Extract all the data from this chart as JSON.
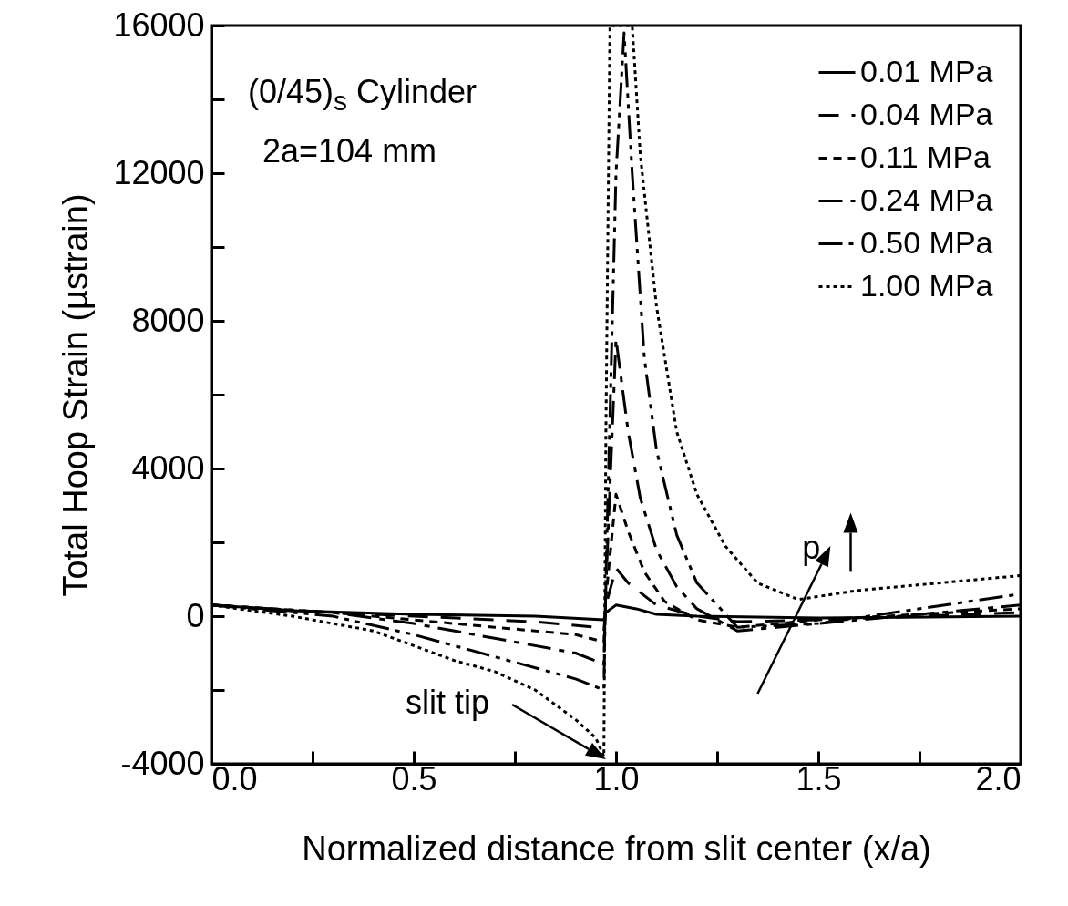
{
  "chart_data": {
    "type": "line",
    "xlabel": "Normalized distance from slit center (x/a)",
    "ylabel": "Total Hoop Strain (µstrain)",
    "xlim": [
      0,
      2
    ],
    "ylim": [
      -4000,
      16000
    ],
    "xticks": [
      {
        "value": 0,
        "label": "0.0"
      },
      {
        "value": 0.25,
        "label": null
      },
      {
        "value": 0.5,
        "label": "0.5"
      },
      {
        "value": 0.75,
        "label": null
      },
      {
        "value": 1,
        "label": "1.0"
      },
      {
        "value": 1.25,
        "label": null
      },
      {
        "value": 1.5,
        "label": "1.5"
      },
      {
        "value": 1.75,
        "label": null
      },
      {
        "value": 2,
        "label": "2.0"
      }
    ],
    "yticks": [
      -4000,
      {
        "value": -2000,
        "label": null
      },
      0,
      {
        "value": 2000,
        "label": null
      },
      4000,
      {
        "value": 6000,
        "label": null
      },
      8000,
      {
        "value": 10000,
        "label": null
      },
      12000,
      {
        "value": 14000,
        "label": null
      },
      16000
    ],
    "grid": false,
    "legend": "top right",
    "annotations": [
      "(0/45)$_{s}$ Cylinder",
      "2a=104 mm",
      "slit tip",
      "p"
    ],
    "series": [
      {
        "name": "0.01 MPa",
        "color": "#000000",
        "line_style": "solid",
        "x": [
          0,
          0.2,
          0.5,
          0.8,
          0.97,
          0.975,
          1.0,
          1.05,
          1.1,
          1.2,
          1.5,
          2.0
        ],
        "values": [
          300,
          150,
          50,
          0,
          -100,
          100,
          300,
          200,
          50,
          0,
          -50,
          0
        ]
      },
      {
        "name": "0.04 MPa",
        "color": "#000000",
        "line_style": "dashed",
        "x": [
          0,
          0.2,
          0.5,
          0.8,
          0.95,
          0.97,
          0.975,
          1.0,
          1.03,
          1.1,
          1.2,
          1.3,
          1.5,
          2.0
        ],
        "values": [
          300,
          150,
          0,
          -150,
          -300,
          -400,
          300,
          1300,
          900,
          300,
          0,
          -150,
          -100,
          100
        ]
      },
      {
        "name": "0.11 MPa",
        "color": "#000000",
        "line_style": "shortdash",
        "x": [
          0,
          0.3,
          0.5,
          0.7,
          0.9,
          0.97,
          0.975,
          1.0,
          1.03,
          1.07,
          1.12,
          1.2,
          1.3,
          1.5,
          2.0
        ],
        "values": [
          300,
          100,
          -100,
          -300,
          -500,
          -700,
          500,
          3300,
          2300,
          1200,
          400,
          -100,
          -300,
          -100,
          200
        ]
      },
      {
        "name": "0.24 MPa",
        "color": "#000000",
        "line_style": "dashdot",
        "x": [
          0,
          0.3,
          0.5,
          0.7,
          0.9,
          0.97,
          0.975,
          1.0,
          1.03,
          1.06,
          1.1,
          1.15,
          1.2,
          1.3,
          1.5,
          2.0
        ],
        "values": [
          300,
          100,
          -200,
          -600,
          -1000,
          -1300,
          800,
          7500,
          5000,
          3200,
          1800,
          800,
          200,
          -400,
          -200,
          300
        ]
      },
      {
        "name": "0.50 MPa",
        "color": "#000000",
        "line_style": "dashdotdot",
        "x": [
          0,
          0.3,
          0.5,
          0.7,
          0.9,
          0.97,
          0.975,
          1.0,
          1.02,
          1.04,
          1.07,
          1.1,
          1.15,
          1.2,
          1.3,
          1.5,
          2.0
        ],
        "values": [
          300,
          0,
          -500,
          -1100,
          -1700,
          -2000,
          1000,
          12000,
          15800,
          12000,
          7000,
          4500,
          2200,
          900,
          -300,
          -200,
          600
        ]
      },
      {
        "name": "1.00 MPa",
        "color": "#000000",
        "line_style": "dotted",
        "x": [
          0,
          0.2,
          0.4,
          0.5,
          0.6,
          0.7,
          0.8,
          0.9,
          0.95,
          0.97,
          0.975,
          0.985,
          1.04,
          1.06,
          1.1,
          1.15,
          1.2,
          1.27,
          1.35,
          1.45,
          1.6,
          1.8,
          2.0
        ],
        "values": [
          300,
          0,
          -400,
          -800,
          -1200,
          -1500,
          -2000,
          -2800,
          -3300,
          -3800,
          5000,
          16000,
          16000,
          12500,
          8400,
          5000,
          3300,
          1900,
          900,
          450,
          700,
          900,
          1100
        ]
      }
    ]
  }
}
